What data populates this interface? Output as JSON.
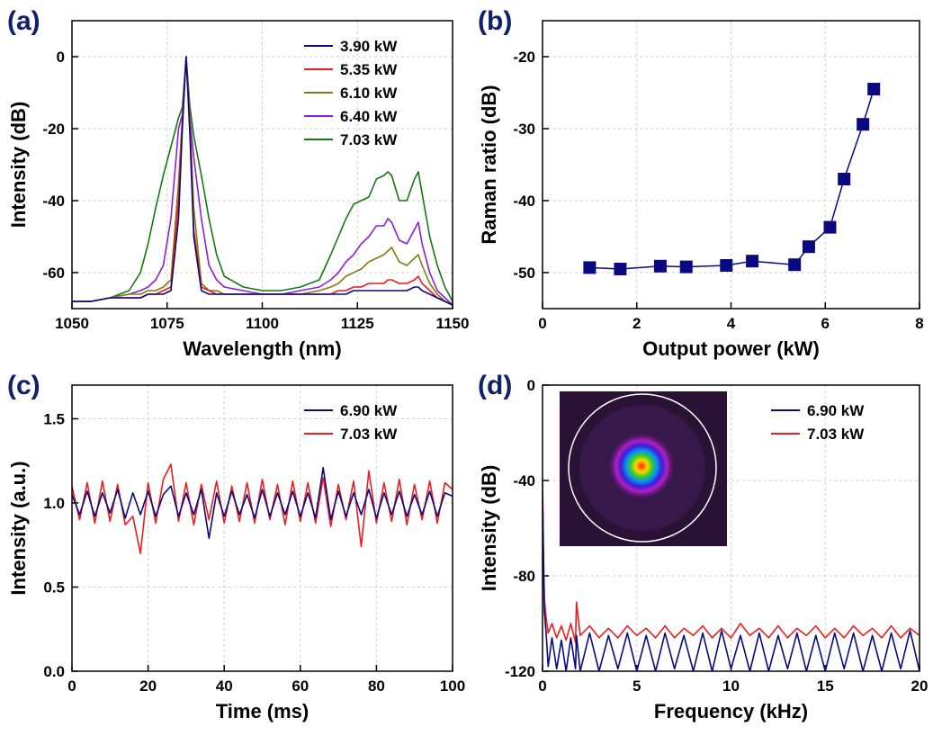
{
  "chart_data": [
    {
      "type": "line",
      "panel_label": "(a)",
      "xlabel": "Wavelength (nm)",
      "ylabel": "Intensity (dB)",
      "xlim": [
        1050,
        1150
      ],
      "ylim": [
        -70,
        10
      ],
      "xticks": [
        1050,
        1075,
        1100,
        1125,
        1150
      ],
      "yticks": [
        -60,
        -40,
        -20,
        0
      ],
      "grid": true,
      "legend": "upper right",
      "markers": false,
      "x": [
        1050,
        1055,
        1060,
        1065,
        1068,
        1070,
        1072,
        1074,
        1076,
        1078,
        1079,
        1080,
        1081,
        1082,
        1084,
        1086,
        1088,
        1090,
        1095,
        1100,
        1105,
        1110,
        1115,
        1118,
        1120,
        1122,
        1124,
        1126,
        1128,
        1130,
        1132,
        1133,
        1134,
        1136,
        1138,
        1140,
        1141,
        1142,
        1144,
        1146,
        1148,
        1150
      ],
      "series": [
        {
          "name": "3.90 kW",
          "color": "#0a0a80",
          "values": [
            -68,
            -68,
            -67,
            -67,
            -67,
            -66,
            -66,
            -66,
            -65,
            -45,
            -20,
            0,
            -22,
            -50,
            -65,
            -66,
            -66,
            -66,
            -66,
            -66,
            -66,
            -66,
            -66,
            -66,
            -66,
            -66,
            -65,
            -65,
            -65,
            -65,
            -65,
            -65,
            -65,
            -65,
            -65,
            -64,
            -64,
            -65,
            -66,
            -67,
            -68,
            -69
          ]
        },
        {
          "name": "5.35 kW",
          "color": "#ee1c1c",
          "values": [
            -68,
            -68,
            -67,
            -67,
            -67,
            -66,
            -66,
            -65,
            -64,
            -40,
            -18,
            0,
            -20,
            -48,
            -64,
            -65,
            -66,
            -66,
            -66,
            -66,
            -66,
            -66,
            -66,
            -66,
            -65,
            -65,
            -64,
            -64,
            -63,
            -63,
            -63,
            -62,
            -62,
            -63,
            -63,
            -62,
            -61,
            -63,
            -65,
            -67,
            -68,
            -69
          ]
        },
        {
          "name": "6.10 kW",
          "color": "#7f7f10",
          "values": [
            -68,
            -68,
            -67,
            -66,
            -66,
            -65,
            -65,
            -64,
            -62,
            -35,
            -17,
            0,
            -18,
            -42,
            -63,
            -65,
            -65,
            -66,
            -66,
            -66,
            -66,
            -66,
            -65,
            -64,
            -63,
            -61,
            -60,
            -59,
            -57,
            -56,
            -55,
            -54,
            -53,
            -57,
            -58,
            -56,
            -55,
            -58,
            -63,
            -66,
            -68,
            -69
          ]
        },
        {
          "name": "6.40 kW",
          "color": "#8a1ee8",
          "values": [
            -68,
            -68,
            -67,
            -66,
            -65,
            -64,
            -62,
            -58,
            -45,
            -20,
            -16,
            0,
            -17,
            -28,
            -45,
            -58,
            -62,
            -64,
            -65,
            -66,
            -66,
            -65,
            -64,
            -62,
            -60,
            -57,
            -55,
            -52,
            -50,
            -47,
            -47,
            -45,
            -46,
            -51,
            -52,
            -48,
            -46,
            -52,
            -60,
            -65,
            -67,
            -69
          ]
        },
        {
          "name": "7.03 kW",
          "color": "#137a13",
          "values": [
            -68,
            -68,
            -67,
            -65,
            -60,
            -52,
            -42,
            -33,
            -25,
            -17,
            -14,
            0,
            -14,
            -22,
            -33,
            -45,
            -55,
            -61,
            -64,
            -65,
            -65,
            -64,
            -62,
            -55,
            -50,
            -45,
            -41,
            -40,
            -39,
            -34,
            -33,
            -32,
            -33,
            -40,
            -40,
            -34,
            -32,
            -38,
            -50,
            -58,
            -64,
            -68
          ]
        }
      ]
    },
    {
      "type": "line",
      "panel_label": "(b)",
      "xlabel": "Output power (kW)",
      "ylabel": "Raman ratio (dB)",
      "xlim": [
        0,
        8
      ],
      "ylim": [
        -55,
        -15
      ],
      "xticks": [
        0,
        2,
        4,
        6,
        8
      ],
      "yticks": [
        -50,
        -40,
        -30,
        -20
      ],
      "grid": true,
      "markers": true,
      "x": [
        1.0,
        1.65,
        2.5,
        3.05,
        3.9,
        4.45,
        5.35,
        5.65,
        6.1,
        6.4,
        6.8,
        7.03
      ],
      "series": [
        {
          "color": "#0a0a80",
          "values": [
            -49.3,
            -49.5,
            -49.1,
            -49.2,
            -49.0,
            -48.4,
            -48.9,
            -46.4,
            -43.7,
            -37.0,
            -29.4,
            -24.5
          ]
        }
      ]
    },
    {
      "type": "line",
      "panel_label": "(c)",
      "xlabel": "Time (ms)",
      "ylabel": "Intensity (a.u.)",
      "xlim": [
        0,
        100
      ],
      "ylim": [
        0,
        1.7
      ],
      "xticks": [
        0,
        20,
        40,
        60,
        80,
        100
      ],
      "yticks": [
        {
          "value": 0,
          "label": "0.0"
        },
        0.5,
        {
          "value": 1,
          "label": "1.0"
        },
        1.5
      ],
      "grid": true,
      "legend": "upper right",
      "markers": false,
      "x": [
        0,
        2,
        4,
        6,
        8,
        10,
        12,
        14,
        16,
        18,
        20,
        22,
        24,
        26,
        28,
        30,
        32,
        34,
        36,
        38,
        40,
        42,
        44,
        46,
        48,
        50,
        52,
        54,
        56,
        58,
        60,
        62,
        64,
        66,
        68,
        70,
        72,
        74,
        76,
        78,
        80,
        82,
        84,
        86,
        88,
        90,
        92,
        94,
        96,
        98,
        100
      ],
      "series": [
        {
          "name": "6.90 kW",
          "color": "#0a0a80",
          "values": [
            1.05,
            0.93,
            1.07,
            0.92,
            1.06,
            0.94,
            1.08,
            0.91,
            1.06,
            0.93,
            1.07,
            0.92,
            1.05,
            1.1,
            0.92,
            1.06,
            0.93,
            1.08,
            0.79,
            1.06,
            0.92,
            1.07,
            0.93,
            1.05,
            0.91,
            1.08,
            0.92,
            1.06,
            0.93,
            1.07,
            0.92,
            1.06,
            0.91,
            1.21,
            0.9,
            1.07,
            0.92,
            1.06,
            0.93,
            1.08,
            0.91,
            1.06,
            0.93,
            1.07,
            0.92,
            1.05,
            0.93,
            1.07,
            0.92,
            1.06,
            1.04
          ]
        },
        {
          "name": "7.03 kW",
          "color": "#ee1c1c",
          "values": [
            1.1,
            0.9,
            1.12,
            0.88,
            1.13,
            0.89,
            1.11,
            0.87,
            0.92,
            0.7,
            1.12,
            0.88,
            1.14,
            1.23,
            0.89,
            1.12,
            0.87,
            1.11,
            0.9,
            1.13,
            0.88,
            1.1,
            0.89,
            1.12,
            0.88,
            1.14,
            0.9,
            1.11,
            0.87,
            1.13,
            0.89,
            1.12,
            0.88,
            1.15,
            0.86,
            1.11,
            0.9,
            1.13,
            0.74,
            1.19,
            0.88,
            1.12,
            0.89,
            1.14,
            0.87,
            1.11,
            0.9,
            1.13,
            0.88,
            1.12,
            1.08
          ]
        }
      ]
    },
    {
      "type": "line",
      "panel_label": "(d)",
      "xlabel": "Frequency (kHz)",
      "ylabel": "Intensity (dB)",
      "xlim": [
        0,
        20
      ],
      "ylim": [
        -120,
        0
      ],
      "xticks": [
        0,
        5,
        10,
        15,
        20
      ],
      "yticks": [
        -120,
        -80,
        -40,
        0
      ],
      "grid": true,
      "legend": "upper right",
      "markers": false,
      "x": [
        0,
        0.05,
        0.1,
        0.2,
        0.3,
        0.5,
        0.75,
        1,
        1.25,
        1.5,
        1.75,
        1.8,
        2,
        2.5,
        3,
        3.5,
        4,
        4.5,
        5,
        5.5,
        6,
        6.5,
        7,
        7.5,
        8,
        8.5,
        9,
        9.5,
        10,
        10.5,
        11,
        11.5,
        12,
        12.5,
        13,
        13.5,
        14,
        14.5,
        15,
        15.5,
        16,
        16.5,
        17,
        17.5,
        18,
        18.5,
        19,
        19.5,
        20
      ],
      "series": [
        {
          "name": "6.90 kW",
          "color": "#0a0a80",
          "values": [
            -45,
            -75,
            -95,
            -105,
            -118,
            -106,
            -119,
            -107,
            -120,
            -106,
            -119,
            -105,
            -120,
            -104,
            -120,
            -105,
            -119,
            -104,
            -120,
            -105,
            -120,
            -104,
            -119,
            -105,
            -120,
            -104,
            -120,
            -103,
            -119,
            -105,
            -120,
            -104,
            -120,
            -105,
            -119,
            -104,
            -120,
            -105,
            -120,
            -104,
            -119,
            -104,
            -120,
            -105,
            -120,
            -104,
            -119,
            -103,
            -120
          ]
        },
        {
          "name": "7.03 kW",
          "color": "#ee1c1c",
          "values": [
            -40,
            -70,
            -90,
            -98,
            -104,
            -100,
            -106,
            -101,
            -107,
            -100,
            -108,
            -91,
            -105,
            -101,
            -106,
            -102,
            -106,
            -101,
            -105,
            -102,
            -106,
            -101,
            -106,
            -102,
            -105,
            -101,
            -106,
            -102,
            -106,
            -100,
            -105,
            -102,
            -106,
            -101,
            -106,
            -102,
            -105,
            -101,
            -106,
            -102,
            -106,
            -101,
            -105,
            -102,
            -106,
            -101,
            -106,
            -102,
            -105
          ]
        }
      ]
    }
  ]
}
